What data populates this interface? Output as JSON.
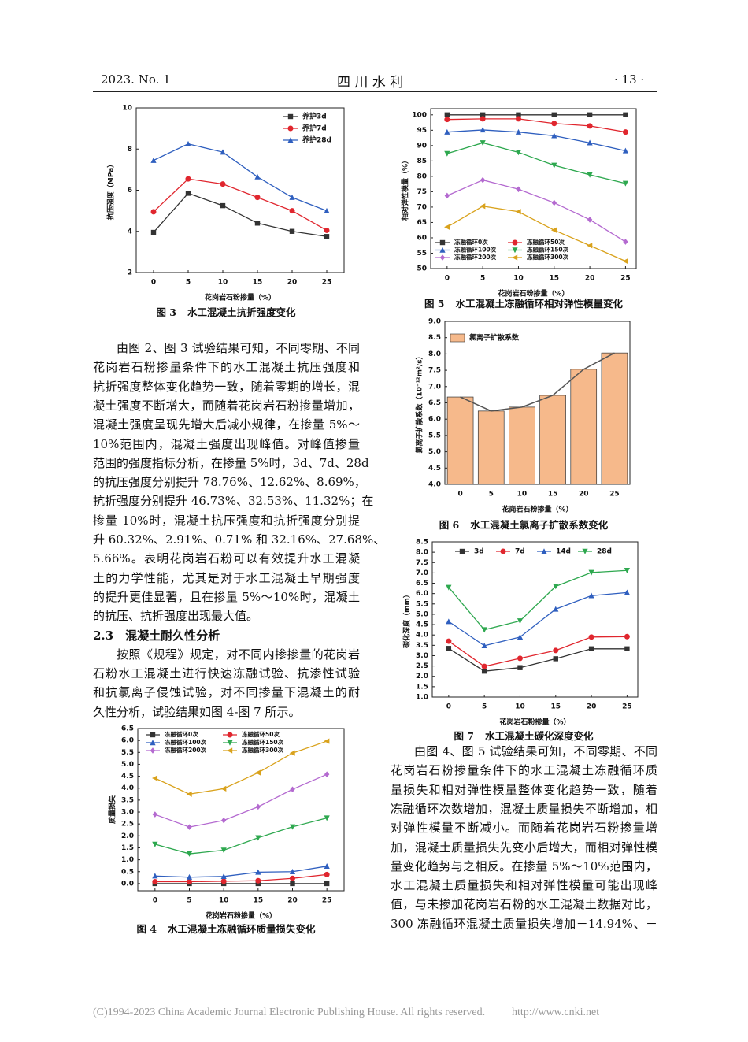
{
  "header": {
    "issue": "2023. No. 1",
    "journal": "四 川 水 利",
    "page": "· 13 ·"
  },
  "left_text": [
    {
      "indent": true,
      "lines": [
        "由图 2、图 3 试验结果可知，不同零期、不同",
        "花岗岩石粉掺量条件下的水工混凝土抗压强度和",
        "抗折强度整体变化趋势一致，随着零期的增长，混",
        "凝土强度不断增大，而随着花岗岩石粉掺量增加，",
        "混凝土强度呈现先增大后减小规律，在掺量 5%～",
        "10%范围内，混凝土强度出现峰值。对峰值掺量",
        "范围的强度指标分析，在掺量 5%时，3d、7d、28d",
        "的抗压强度分别提升 78.76%、12.62%、8.69%，",
        "抗折强度分别提升 46.73%、32.53%、11.32%；在",
        "掺量 10%时，混凝土抗压强度和抗折强度分别提",
        "升 60.32%、2.91%、0.71% 和 32.16%、27.68%、",
        "5.66%。表明花岗岩石粉可以有效提升水工混凝",
        "土的力学性能，尤其是对于水工混凝土早期强度",
        "的提升更佳显著，且在掺量 5%～10%时，混凝土",
        "的抗压、抗折强度出现最大值。"
      ]
    },
    {
      "heading": "2.3　混凝土耐久性分析"
    },
    {
      "indent": true,
      "lines": [
        "按照《规程》规定，对不同内掺掺量的花岗岩",
        "石粉水工混凝土进行快速冻融试验、抗渗性试验",
        "和抗氯离子侵蚀试验，对不同掺量下混凝土的耐",
        "久性分析，试验结果如图 4-图 7 所示。"
      ]
    }
  ],
  "right_text": [
    {
      "indent": true,
      "lines": [
        "由图 4、图 5 试验结果可知，不同零期、不同",
        "花岗岩石粉掺量条件下的水工混凝土冻融循环质",
        "量损失和相对弹性模量整体变化趋势一致，随着",
        "冻融循环次数增加，混凝土质量损失不断增加，相",
        "对弹性模量不断减小。而随着花岗岩石粉掺量增",
        "加，混凝土质量损失先变小后增大，而相对弹性模",
        "量变化趋势与之相反。在掺量 5%～10%范围内，",
        "水工混凝土质量损失和相对弹性模量可能出现峰",
        "值，与未掺加花岗岩石粉的水工混凝土数据对比，",
        "300 冻融循环混凝土质量损失增加－14.94%、－"
      ]
    }
  ],
  "chart_data": [
    {
      "type": "line",
      "figure_label": "图 3",
      "title": "水工混凝土抗折强度变化",
      "x_label": "花岗岩石粉掺量（%）",
      "y_label": "抗压强度（MPa）",
      "x": [
        0,
        5,
        10,
        15,
        20,
        25
      ],
      "xlim": [
        -2.5,
        27.5
      ],
      "xticks": [
        0,
        5,
        10,
        15,
        20,
        25
      ],
      "ylim": [
        2,
        10
      ],
      "yticks": [
        2,
        4,
        6,
        8,
        10
      ],
      "legend": "upper right",
      "series": [
        {
          "name": "养护3d",
          "color": "#333333",
          "marker": "square",
          "values": [
            3.95,
            5.85,
            5.25,
            4.4,
            4.0,
            3.75
          ]
        },
        {
          "name": "养护7d",
          "color": "#e0262e",
          "marker": "circle",
          "values": [
            4.95,
            6.55,
            6.3,
            5.65,
            5.0,
            4.05
          ]
        },
        {
          "name": "养护28d",
          "color": "#2f5fbf",
          "marker": "triangle",
          "values": [
            7.45,
            8.25,
            7.85,
            6.65,
            5.65,
            5.0
          ]
        }
      ]
    },
    {
      "type": "line",
      "figure_label": "图 5",
      "title": "水工混凝土冻融循环相对弹性模量变化",
      "x_label": "花岗岩石粉掺量（%）",
      "y_label": "相对弹性模量（%）",
      "x": [
        0,
        5,
        10,
        15,
        20,
        25
      ],
      "xlim": [
        -2.3,
        26.5
      ],
      "xticks": [
        0,
        5,
        10,
        15,
        20,
        25
      ],
      "ylim": [
        50,
        102
      ],
      "yticks": [
        50,
        55,
        60,
        65,
        70,
        75,
        80,
        85,
        90,
        95,
        100
      ],
      "legend": "lower left",
      "series": [
        {
          "name": "冻融循环0次",
          "color": "#333333",
          "marker": "square",
          "values": [
            100,
            100,
            100,
            100,
            100,
            100
          ]
        },
        {
          "name": "冻融循环50次",
          "color": "#e0262e",
          "marker": "circle",
          "values": [
            98.5,
            98.7,
            98.7,
            97.2,
            96.4,
            94.4
          ]
        },
        {
          "name": "冻融循环100次",
          "color": "#2f5fbf",
          "marker": "triangle",
          "values": [
            94.4,
            95.1,
            94.4,
            93.2,
            90.9,
            88.3
          ]
        },
        {
          "name": "冻融循环150次",
          "color": "#2ea84f",
          "marker": "triangle-down",
          "values": [
            87.4,
            90.9,
            87.8,
            83.6,
            80.5,
            77.7
          ]
        },
        {
          "name": "冻融循环200次",
          "color": "#b46ad0",
          "marker": "diamond",
          "values": [
            73.7,
            78.8,
            75.8,
            71.4,
            65.9,
            58.7
          ]
        },
        {
          "name": "冻融循环300次",
          "color": "#d9a21c",
          "marker": "triangle-left",
          "values": [
            63.5,
            70.3,
            68.5,
            62.5,
            57.5,
            52.4
          ]
        }
      ]
    },
    {
      "type": "bar",
      "figure_label": "图 6",
      "title": "水工混凝土氯离子扩散系数变化",
      "x_label": "花岗岩石粉掺量（%）",
      "y_label": "氯离子扩散系数（10⁻¹²m²/s）",
      "categories": [
        "0",
        "5",
        "10",
        "15",
        "20",
        "25"
      ],
      "name": "氯离子扩散系数",
      "color": "#f6b98b",
      "line_color": "#555555",
      "values": [
        6.68,
        6.25,
        6.37,
        6.73,
        7.53,
        8.03
      ],
      "ylim": [
        4,
        9
      ],
      "yticks": [
        {
          "value": 4,
          "label": "4.0"
        },
        4.5,
        {
          "value": 5,
          "label": "5.0"
        },
        5.5,
        {
          "value": 6,
          "label": "6.0"
        },
        6.5,
        {
          "value": 7,
          "label": "7.0"
        },
        7.5,
        {
          "value": 8,
          "label": "8.0"
        },
        8.5,
        {
          "value": 9,
          "label": "9.0"
        }
      ],
      "legend": "upper left"
    },
    {
      "type": "line",
      "figure_label": "图 7",
      "title": "水工混凝土碳化深度变化",
      "x_label": "花岗岩石粉掺量（%）",
      "y_label": "碳化深度（mm）",
      "x": [
        0,
        5,
        10,
        15,
        20,
        25
      ],
      "xlim": [
        -2.3,
        26.5
      ],
      "xticks": [
        0,
        5,
        10,
        15,
        20,
        25
      ],
      "ylim": [
        1,
        8.5
      ],
      "yticks": [
        {
          "value": 1,
          "label": "1.0"
        },
        1.5,
        {
          "value": 2,
          "label": "2.0"
        },
        2.5,
        {
          "value": 3,
          "label": "3.0"
        },
        3.5,
        {
          "value": 4,
          "label": "4.0"
        },
        4.5,
        {
          "value": 5,
          "label": "5.0"
        },
        5.5,
        {
          "value": 6,
          "label": "6.0"
        },
        6.5,
        {
          "value": 7,
          "label": "7.0"
        },
        7.5,
        {
          "value": 8,
          "label": "8.0"
        },
        8.5
      ],
      "legend": "top",
      "series": [
        {
          "name": "3d",
          "color": "#333333",
          "marker": "square",
          "values": [
            3.35,
            2.25,
            2.42,
            2.85,
            3.33,
            3.33
          ]
        },
        {
          "name": "7d",
          "color": "#e0262e",
          "marker": "circle",
          "values": [
            3.7,
            2.48,
            2.87,
            3.25,
            3.9,
            3.92
          ]
        },
        {
          "name": "14d",
          "color": "#2f5fbf",
          "marker": "triangle",
          "values": [
            4.65,
            3.48,
            3.9,
            5.25,
            5.9,
            6.05
          ]
        },
        {
          "name": "28d",
          "color": "#2ea84f",
          "marker": "triangle-down",
          "values": [
            6.3,
            4.25,
            4.68,
            6.35,
            7.02,
            7.12
          ]
        }
      ]
    },
    {
      "type": "line",
      "figure_label": "图 4",
      "title": "水工混凝土冻融循环质量损失变化",
      "x_label": "花岗岩石粉掺量（%）",
      "y_label": "质量损失",
      "x": [
        0,
        5,
        10,
        15,
        20,
        25
      ],
      "xlim": [
        -2.5,
        27.5
      ],
      "xticks": [
        0,
        5,
        10,
        15,
        20,
        25
      ],
      "ylim": [
        -0.3,
        6.5
      ],
      "yticks": [
        {
          "value": 0,
          "label": "0.0"
        },
        0.5,
        {
          "value": 1,
          "label": "1.0"
        },
        1.5,
        {
          "value": 2,
          "label": "2.0"
        },
        2.5,
        {
          "value": 3,
          "label": "3.0"
        },
        3.5,
        {
          "value": 4,
          "label": "4.0"
        },
        4.5,
        {
          "value": 5,
          "label": "5.0"
        },
        5.5,
        {
          "value": 6,
          "label": "6.0"
        },
        6.5
      ],
      "legend": "top",
      "series": [
        {
          "name": "冻融循环0次",
          "color": "#333333",
          "marker": "square",
          "values": [
            0,
            0,
            0,
            0,
            0,
            0
          ]
        },
        {
          "name": "冻融循环50次",
          "color": "#e0262e",
          "marker": "circle",
          "values": [
            0.08,
            0.08,
            0.1,
            0.12,
            0.22,
            0.38
          ]
        },
        {
          "name": "冻融循环100次",
          "color": "#2f5fbf",
          "marker": "triangle",
          "values": [
            0.32,
            0.27,
            0.3,
            0.48,
            0.5,
            0.73
          ]
        },
        {
          "name": "冻融循环150次",
          "color": "#2ea84f",
          "marker": "triangle-down",
          "values": [
            1.65,
            1.25,
            1.4,
            1.92,
            2.38,
            2.75
          ]
        },
        {
          "name": "冻融循环200次",
          "color": "#b46ad0",
          "marker": "diamond",
          "values": [
            2.9,
            2.37,
            2.65,
            3.22,
            3.95,
            4.58
          ]
        },
        {
          "name": "冻融循环300次",
          "color": "#d9a21c",
          "marker": "triangle-left",
          "values": [
            4.42,
            3.75,
            3.98,
            4.65,
            5.47,
            5.97
          ]
        }
      ]
    }
  ],
  "footer": {
    "copyright": "(C)1994-2023 China Academic Journal Electronic Publishing House. All rights reserved.",
    "url": "http://www.cnki.net"
  }
}
